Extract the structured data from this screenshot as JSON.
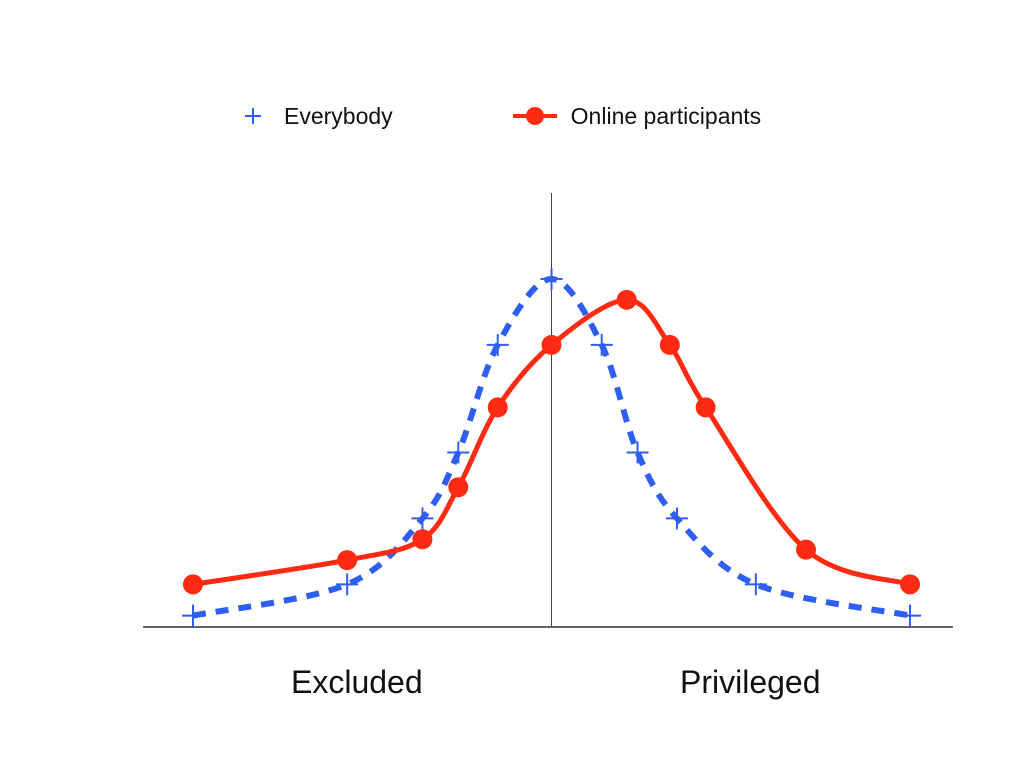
{
  "chart_data": {
    "type": "line",
    "title": "",
    "xlabel": "",
    "ylabel": "",
    "xlim": [
      -1,
      1
    ],
    "ylim": [
      0,
      1
    ],
    "grid": false,
    "legend_position": "top",
    "categories_below_axis": [
      "Excluded",
      "Privileged"
    ],
    "series": [
      {
        "name": "Everybody",
        "marker": "plus",
        "line": "dashed",
        "color": "#2f5ff2",
        "points": [
          {
            "x": -1.0,
            "y": 0.03
          },
          {
            "x": -0.57,
            "y": 0.12
          },
          {
            "x": -0.36,
            "y": 0.31
          },
          {
            "x": -0.26,
            "y": 0.5
          },
          {
            "x": -0.15,
            "y": 0.81
          },
          {
            "x": 0.0,
            "y": 1.0
          },
          {
            "x": 0.14,
            "y": 0.81
          },
          {
            "x": 0.24,
            "y": 0.5
          },
          {
            "x": 0.35,
            "y": 0.31
          },
          {
            "x": 0.57,
            "y": 0.12
          },
          {
            "x": 1.0,
            "y": 0.03
          }
        ]
      },
      {
        "name": "Online participants",
        "marker": "circle",
        "line": "solid",
        "color": "#ff2a12",
        "points": [
          {
            "x": -1.0,
            "y": 0.12
          },
          {
            "x": -0.57,
            "y": 0.19
          },
          {
            "x": -0.36,
            "y": 0.25
          },
          {
            "x": -0.26,
            "y": 0.4
          },
          {
            "x": -0.15,
            "y": 0.63
          },
          {
            "x": 0.0,
            "y": 0.81
          },
          {
            "x": 0.21,
            "y": 0.94
          },
          {
            "x": 0.33,
            "y": 0.81
          },
          {
            "x": 0.43,
            "y": 0.63
          },
          {
            "x": 0.71,
            "y": 0.22
          },
          {
            "x": 1.0,
            "y": 0.12
          }
        ]
      }
    ]
  }
}
